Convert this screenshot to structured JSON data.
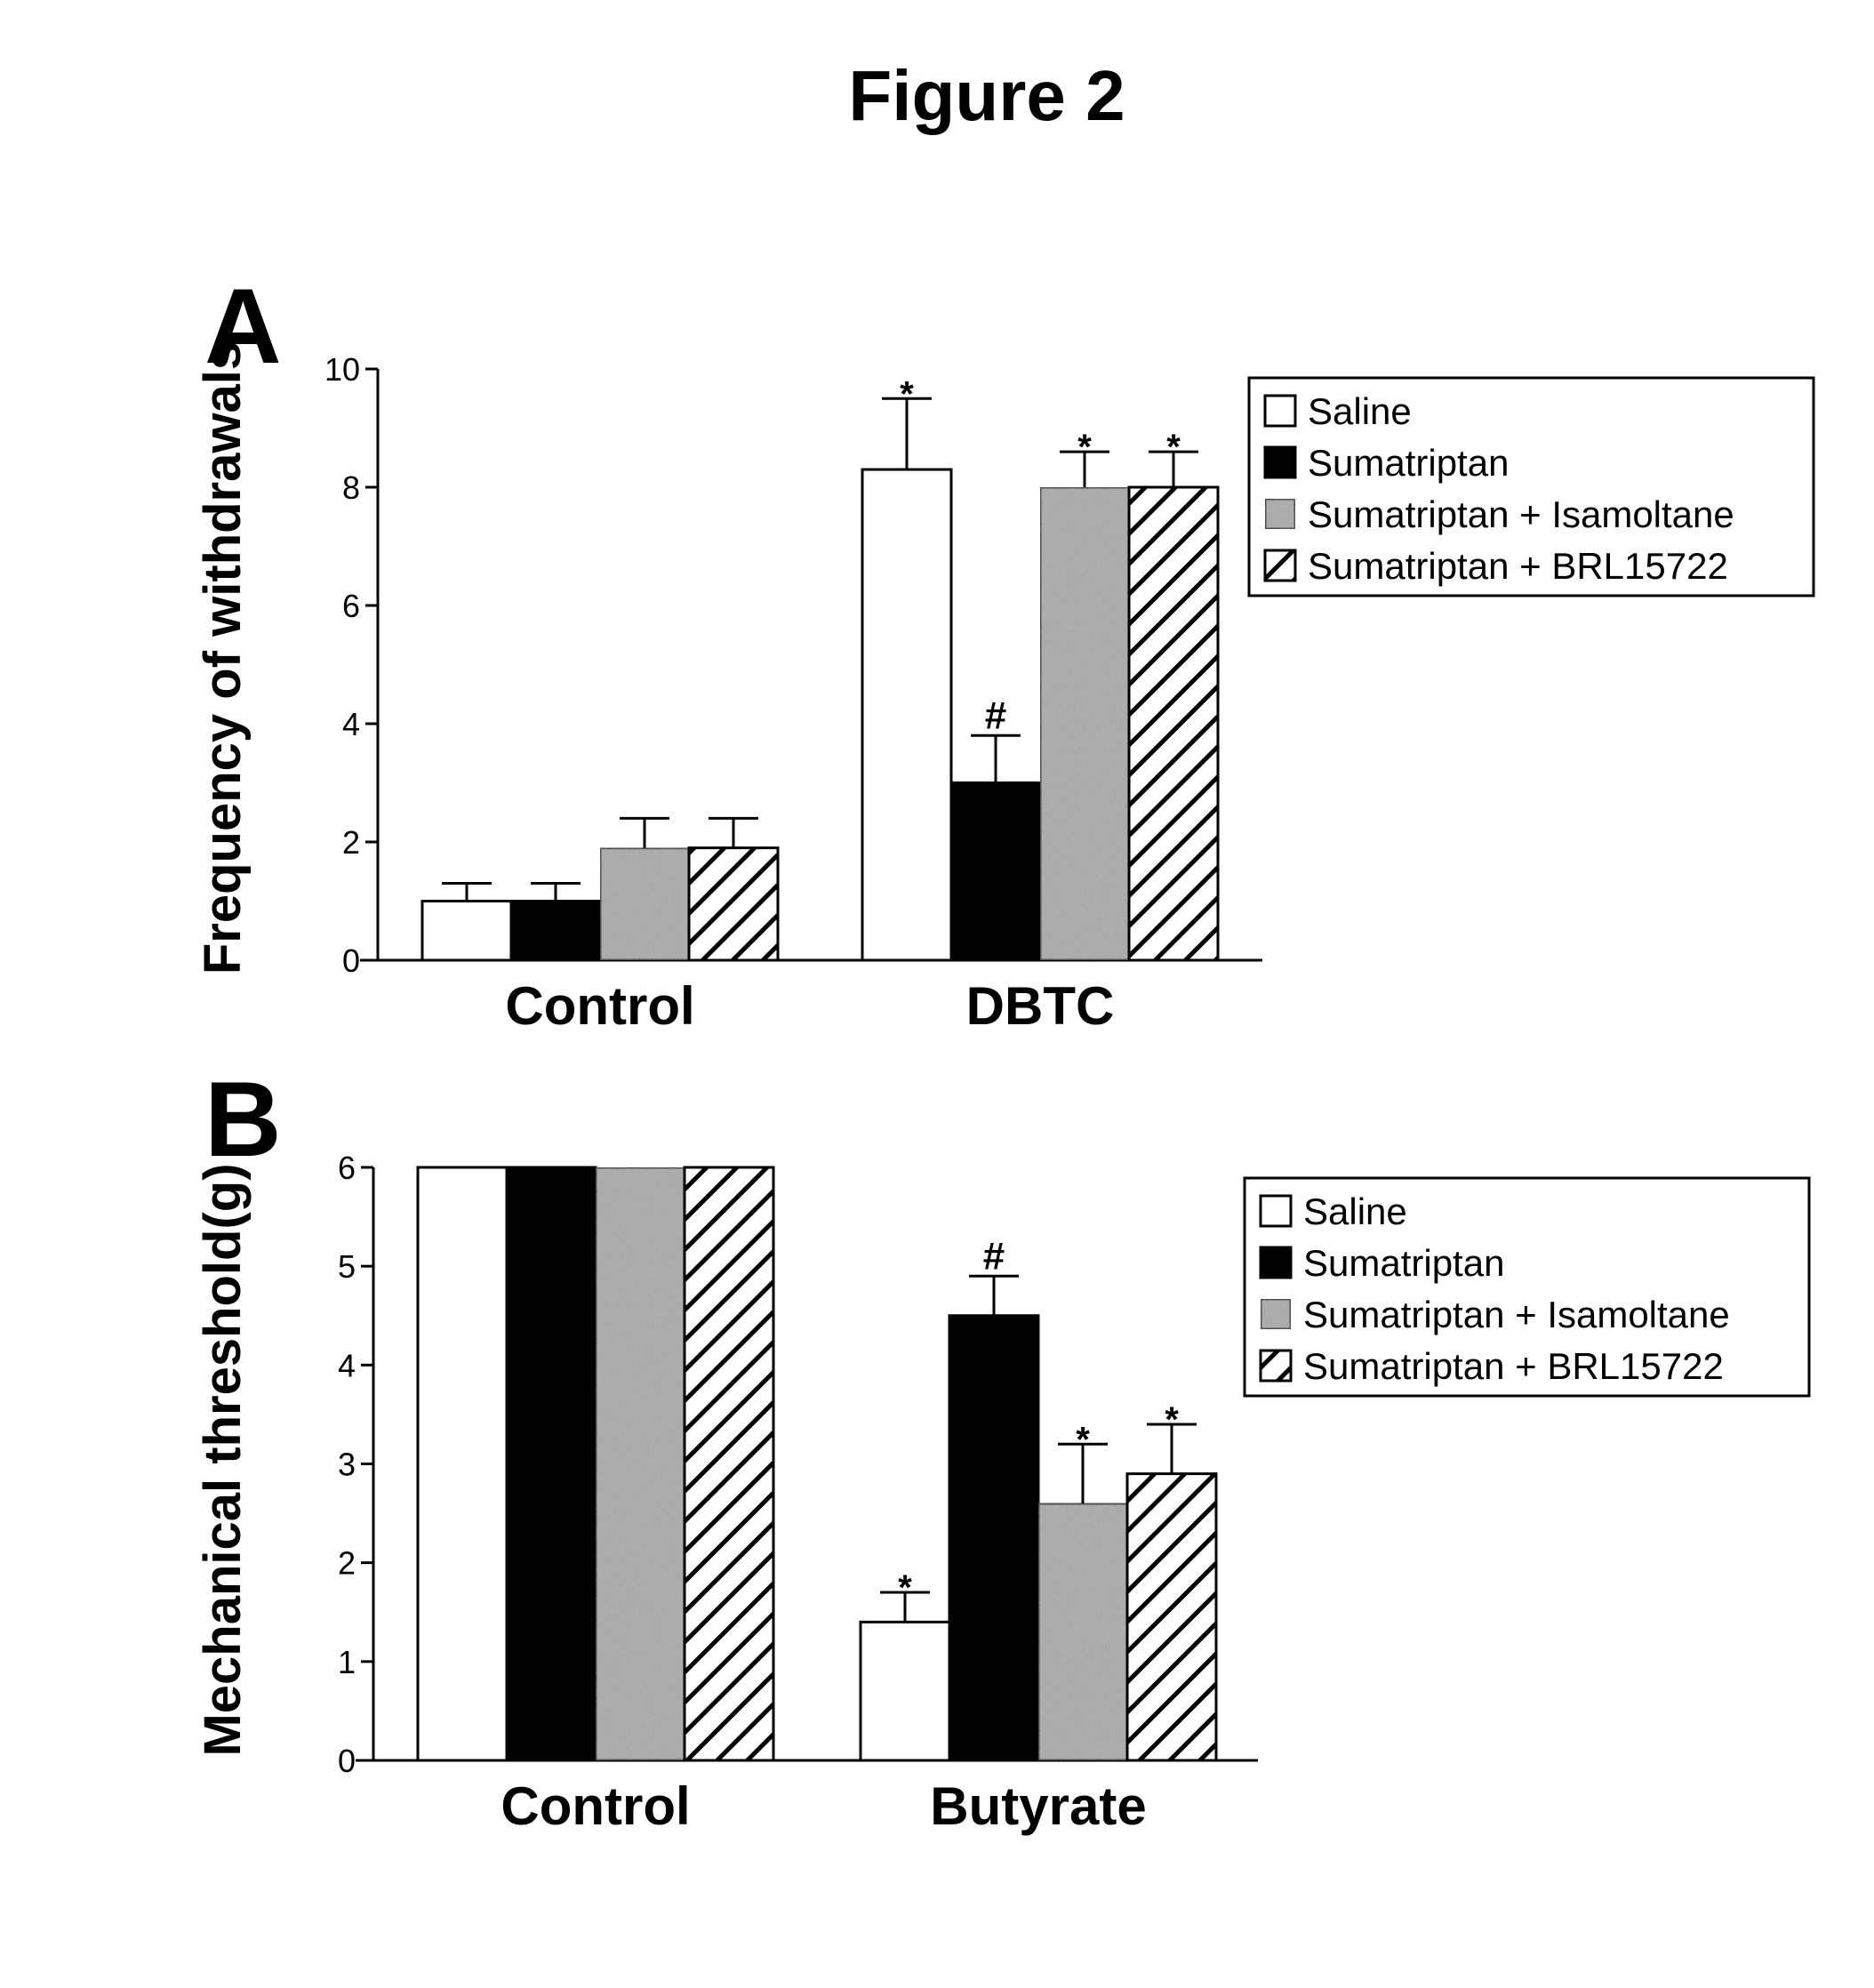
{
  "figure_title": "Figure 2",
  "legend": [
    "Saline",
    "Sumatriptan",
    "Sumatriptan + Isamoltane",
    "Sumatriptan + BRL15722"
  ],
  "colors": {
    "saline": "#ffffff",
    "sumatriptan": "#000000",
    "isamoltane": "#a9a9a9",
    "brl": "hatch-diagonal"
  },
  "chart_data": [
    {
      "panel": "A",
      "type": "bar",
      "ylabel": "Frequency of withdrawals",
      "xlabel": "",
      "ylim": [
        0,
        10
      ],
      "yticks": [
        0,
        2,
        4,
        6,
        8,
        10
      ],
      "categories": [
        "Control",
        "DBTC"
      ],
      "series": [
        {
          "name": "Saline",
          "values": [
            1.0,
            8.3
          ],
          "errors": [
            0.3,
            1.2
          ],
          "markers": [
            "",
            "*"
          ]
        },
        {
          "name": "Sumatriptan",
          "values": [
            1.0,
            3.0
          ],
          "errors": [
            0.3,
            0.8
          ],
          "markers": [
            "",
            "#"
          ]
        },
        {
          "name": "Sumatriptan + Isamoltane",
          "values": [
            1.9,
            8.0
          ],
          "errors": [
            0.5,
            0.6
          ],
          "markers": [
            "",
            "*"
          ]
        },
        {
          "name": "Sumatriptan + BRL15722",
          "values": [
            1.9,
            8.0
          ],
          "errors": [
            0.5,
            0.6
          ],
          "markers": [
            "",
            "*"
          ]
        }
      ]
    },
    {
      "panel": "B",
      "type": "bar",
      "ylabel": "Mechanical threshold(g)",
      "xlabel": "",
      "ylim": [
        0,
        6
      ],
      "yticks": [
        0,
        1,
        2,
        3,
        4,
        5,
        6
      ],
      "categories": [
        "Control",
        "Butyrate"
      ],
      "series": [
        {
          "name": "Saline",
          "values": [
            6.0,
            1.4
          ],
          "errors": [
            0,
            0.3
          ],
          "markers": [
            "",
            "*"
          ]
        },
        {
          "name": "Sumatriptan",
          "values": [
            6.0,
            4.5
          ],
          "errors": [
            0,
            0.4
          ],
          "markers": [
            "",
            "#"
          ]
        },
        {
          "name": "Sumatriptan + Isamoltane",
          "values": [
            6.0,
            2.6
          ],
          "errors": [
            0,
            0.6
          ],
          "markers": [
            "",
            "*"
          ]
        },
        {
          "name": "Sumatriptan + BRL15722",
          "values": [
            6.0,
            2.9
          ],
          "errors": [
            0,
            0.5
          ],
          "markers": [
            "",
            "*"
          ]
        }
      ]
    }
  ]
}
